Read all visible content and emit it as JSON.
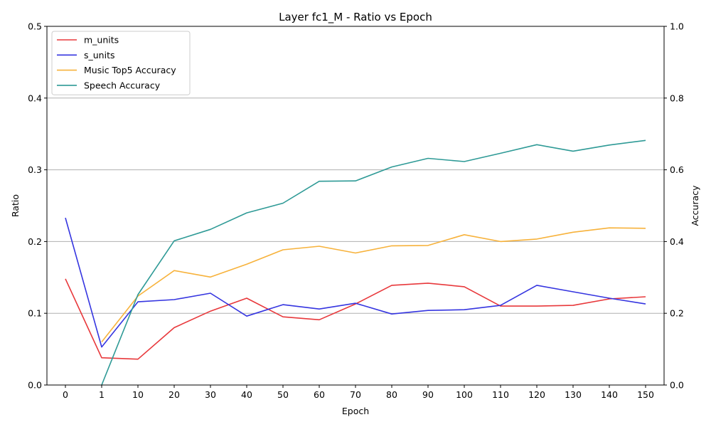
{
  "chart_data": {
    "type": "line",
    "title": "Layer fc1_M - Ratio vs Epoch",
    "xlabel": "Epoch",
    "ylabel": "Ratio",
    "y2label": "Accuracy",
    "categories": [
      "0",
      "1",
      "10",
      "20",
      "30",
      "40",
      "50",
      "60",
      "70",
      "80",
      "90",
      "100",
      "110",
      "120",
      "130",
      "140",
      "150"
    ],
    "ylim": [
      0,
      0.5
    ],
    "y2lim": [
      0,
      1.0
    ],
    "yticks": [
      "0.0",
      "0.1",
      "0.2",
      "0.3",
      "0.4",
      "0.5"
    ],
    "y2ticks": [
      "0.0",
      "0.2",
      "0.4",
      "0.6",
      "0.8",
      "1.0"
    ],
    "grid": "horizontal",
    "legend_position": "top-left",
    "series": [
      {
        "name": "m_units",
        "axis": "left",
        "color": "#e8383b",
        "values": [
          0.148,
          0.038,
          0.036,
          0.08,
          0.103,
          0.121,
          0.095,
          0.091,
          0.113,
          0.139,
          0.142,
          0.137,
          0.11,
          0.11,
          0.111,
          0.12,
          0.123
        ]
      },
      {
        "name": "s_units",
        "axis": "left",
        "color": "#3535e0",
        "values": [
          0.233,
          0.053,
          0.116,
          0.119,
          0.128,
          0.096,
          0.112,
          0.106,
          0.114,
          0.099,
          0.104,
          0.105,
          0.111,
          0.139,
          0.13,
          0.121,
          0.113
        ]
      },
      {
        "name": "Music Top5 Accuracy",
        "axis": "right",
        "color": "#f7b23b",
        "values": [
          null,
          0.12,
          0.248,
          0.319,
          0.301,
          0.337,
          0.377,
          0.387,
          0.368,
          0.388,
          0.389,
          0.419,
          0.4,
          0.407,
          0.426,
          0.438,
          0.437
        ]
      },
      {
        "name": "Speech Accuracy",
        "axis": "right",
        "color": "#2e9a96",
        "values": [
          null,
          0.0,
          0.252,
          0.402,
          0.434,
          0.48,
          0.507,
          0.568,
          0.569,
          0.608,
          0.632,
          0.623,
          0.646,
          0.67,
          0.652,
          0.669,
          0.682
        ]
      }
    ]
  }
}
